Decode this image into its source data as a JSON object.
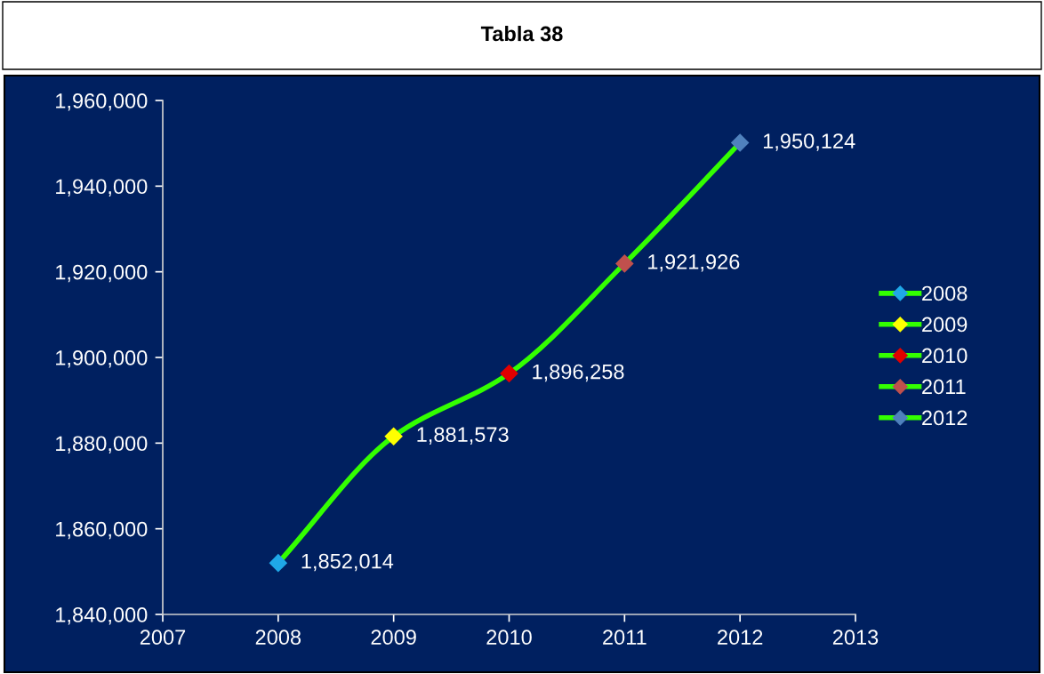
{
  "chart_data": {
    "type": "line",
    "title": "Tabla 38",
    "x": [
      2008,
      2009,
      2010,
      2011,
      2012
    ],
    "series": [
      {
        "color": "#33ff00",
        "values": [
          1852014,
          1881573,
          1896258,
          1921926,
          1950124
        ],
        "marker": "none"
      },
      {
        "type": "scatter",
        "name": "2008",
        "x": [
          2008
        ],
        "values": [
          1852014
        ],
        "value_labels": [
          "1,852,014"
        ],
        "color": "#1fa8e8",
        "marker": "diamond"
      },
      {
        "type": "scatter",
        "name": "2009",
        "x": [
          2009
        ],
        "values": [
          1881573
        ],
        "value_labels": [
          "1,881,573"
        ],
        "color": "#ffff00",
        "marker": "diamond"
      },
      {
        "type": "scatter",
        "name": "2010",
        "x": [
          2010
        ],
        "values": [
          1896258
        ],
        "value_labels": [
          "1,896,258"
        ],
        "color": "#e00000",
        "marker": "diamond"
      },
      {
        "type": "scatter",
        "name": "2011",
        "x": [
          2011
        ],
        "values": [
          1921926
        ],
        "value_labels": [
          "1,921,926"
        ],
        "color": "#c0504d",
        "marker": "diamond"
      },
      {
        "type": "scatter",
        "name": "2012",
        "x": [
          2012
        ],
        "values": [
          1950124
        ],
        "value_labels": [
          "1,950,124"
        ],
        "color": "#4f81bd",
        "marker": "diamond"
      }
    ],
    "xlim": [
      2007,
      2013
    ],
    "xticks": [
      2007,
      2008,
      2009,
      2010,
      2011,
      2012,
      2013
    ],
    "ylim": [
      1840000,
      1960000
    ],
    "yticks": [
      {
        "value": 1840000,
        "label": "1,840,000"
      },
      {
        "value": 1860000,
        "label": "1,860,000"
      },
      {
        "value": 1880000,
        "label": "1,880,000"
      },
      {
        "value": 1900000,
        "label": "1,900,000"
      },
      {
        "value": 1920000,
        "label": "1,920,000"
      },
      {
        "value": 1940000,
        "label": "1,940,000"
      },
      {
        "value": 1960000,
        "label": "1,960,000"
      }
    ],
    "grid": false,
    "legend": "right"
  }
}
